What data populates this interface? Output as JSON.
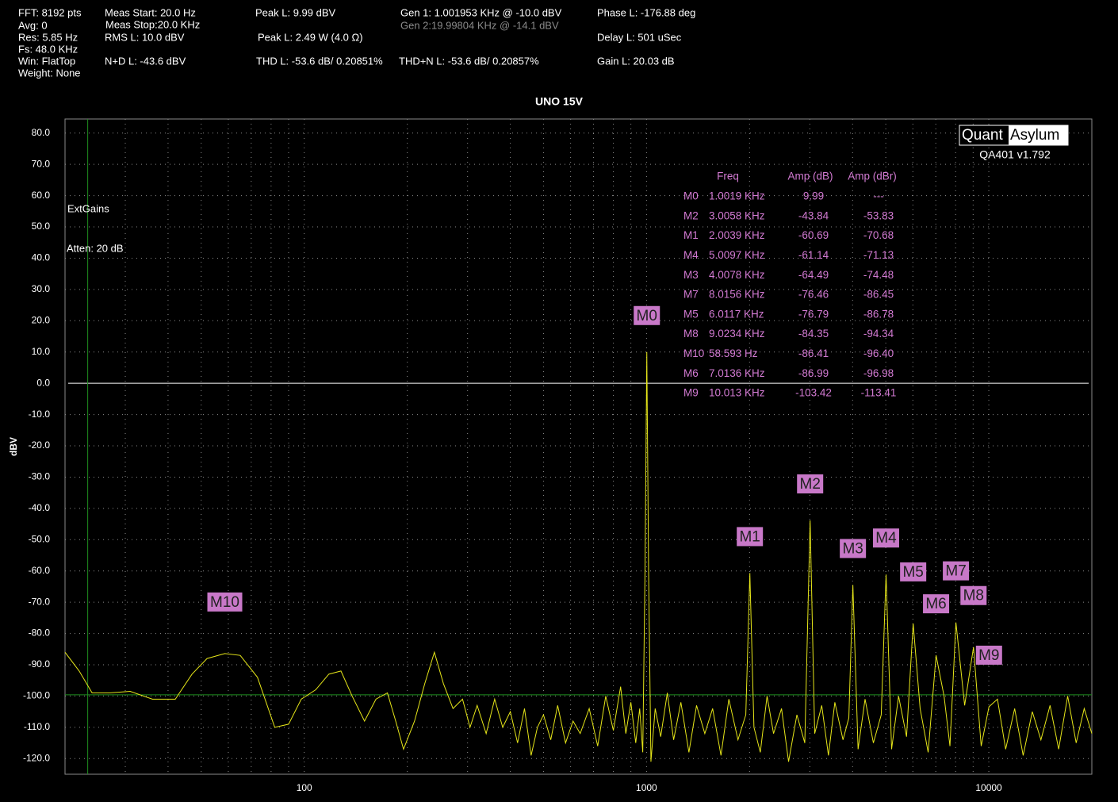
{
  "header": [
    "FFT: 8192 pts",
    "Avg: 0",
    "Res: 5.85 Hz",
    "Fs: 48.0 KHz",
    "Win: FlatTop",
    "Weight: None",
    "Meas Start: 20.0 Hz",
    "Meas Stop:20.0 KHz",
    "RMS L: 10.0 dBV",
    "N+D L: -43.6 dBV",
    "Peak L: 9.99 dBV",
    "Peak L: 2.49 W (4.0 Ω)",
    "THD L: -53.6 dB/ 0.20851%",
    "Gen 1: 1.001953 KHz @ -10.0  dBV",
    "Gen 2:19.99804 KHz @ -14.1  dBV",
    "THD+N L: -53.6 dB/ 0.20857%",
    "Phase L: -176.88 deg",
    "Delay L: 501 uSec",
    "Gain L: 20.03 dB"
  ],
  "logo": [
    "Quant",
    "Asylum"
  ],
  "version": "QA401 v1.792",
  "chart_data": {
    "type": "line",
    "title": "UNO 15V",
    "y_label": "dBV",
    "annotations": [
      "ExtGains",
      "Atten: 20 dB"
    ],
    "xscale": "log",
    "xlim": [
      20,
      20000
    ],
    "xticks": [
      100,
      1000,
      10000
    ],
    "xminor": [
      30,
      40,
      50,
      60,
      70,
      80,
      90,
      200,
      300,
      400,
      500,
      600,
      700,
      800,
      900,
      2000,
      3000,
      4000,
      5000,
      6000,
      7000,
      8000,
      9000
    ],
    "ylim": [
      -125,
      84.5
    ],
    "yticks": [
      {
        "value": 80,
        "label": "80.0"
      },
      {
        "value": 70,
        "label": "70.0"
      },
      {
        "value": 60,
        "label": "60.0"
      },
      {
        "value": 50,
        "label": "50.0"
      },
      {
        "value": 40,
        "label": "40.0"
      },
      {
        "value": 30,
        "label": "30.0"
      },
      {
        "value": 20,
        "label": "20.0"
      },
      {
        "value": 10,
        "label": "10.0"
      },
      {
        "value": 0,
        "label": "0.0"
      },
      {
        "value": -10,
        "label": "-10.0"
      },
      {
        "value": -20,
        "label": "-20.0"
      },
      {
        "value": -30,
        "label": "-30.0"
      },
      {
        "value": -40,
        "label": "-40.0"
      },
      {
        "value": -50,
        "label": "-50.0"
      },
      {
        "value": -60,
        "label": "-60.0"
      },
      {
        "value": -70,
        "label": "-70.0"
      },
      {
        "value": -80,
        "label": "-80.0"
      },
      {
        "value": -90,
        "label": "-90.0"
      },
      {
        "value": -100,
        "label": "-100.0"
      },
      {
        "value": -110,
        "label": "-110.0"
      },
      {
        "value": -120,
        "label": "-120.0"
      }
    ],
    "grid": true,
    "zero_line": true,
    "ref_lines": {
      "x": 23.3,
      "y": -99.6,
      "color": "#1f8f1f"
    },
    "x": [
      20,
      22,
      24,
      27,
      31,
      36,
      42,
      47,
      52,
      58.6,
      65,
      73,
      82,
      90,
      98,
      108,
      118,
      128,
      138,
      150,
      162,
      175,
      185,
      195,
      210,
      225,
      240,
      255,
      272,
      290,
      305,
      320,
      340,
      360,
      380,
      400,
      420,
      440,
      460,
      480,
      500,
      525,
      550,
      580,
      610,
      640,
      680,
      720,
      760,
      800,
      840,
      870,
      900,
      930,
      955,
      975,
      990,
      1001.9,
      1014,
      1030,
      1060,
      1100,
      1150,
      1200,
      1260,
      1330,
      1400,
      1480,
      1560,
      1650,
      1740,
      1850,
      1950,
      2003.9,
      2060,
      2150,
      2250,
      2350,
      2480,
      2600,
      2750,
      2900,
      3005.8,
      3100,
      3250,
      3400,
      3550,
      3750,
      3900,
      4007.8,
      4150,
      4350,
      4600,
      4850,
      5009.7,
      5200,
      5450,
      5750,
      6011.7,
      6300,
      6650,
      7013.6,
      7400,
      7700,
      8015.6,
      8500,
      9023.4,
      9500,
      10013,
      10600,
      11200,
      11900,
      12600,
      13400,
      14200,
      15100,
      16000,
      17000,
      18000,
      19000,
      20000
    ],
    "series": [
      {
        "name": "L",
        "color": "#e6e619",
        "values": [
          -86,
          -92,
          -99,
          -99,
          -98.5,
          -101,
          -101,
          -93,
          -88,
          -86.41,
          -87,
          -94,
          -110,
          -109,
          -101,
          -98,
          -93,
          -92,
          -100,
          -108,
          -101,
          -99,
          -108,
          -117,
          -108,
          -96,
          -86,
          -96,
          -104,
          -101,
          -110,
          -103,
          -112,
          -101,
          -110,
          -105,
          -115,
          -104,
          -119,
          -110,
          -106,
          -114,
          -103,
          -115,
          -108,
          -112,
          -104,
          -116,
          -100,
          -111,
          -97,
          -112,
          -102,
          -115,
          -104,
          -118,
          -60,
          9.99,
          -60,
          -121,
          -104,
          -113,
          -99,
          -114,
          -102,
          -118,
          -103,
          -112,
          -104,
          -119,
          -101,
          -114,
          -106,
          -60.69,
          -110,
          -118,
          -100,
          -112,
          -104,
          -121,
          -106,
          -115,
          -43.84,
          -112,
          -103,
          -119,
          -102,
          -114,
          -107,
          -64.49,
          -117,
          -101,
          -115,
          -106,
          -61.14,
          -117,
          -100,
          -113,
          -76.79,
          -104,
          -118,
          -86.99,
          -100,
          -116,
          -76.46,
          -103,
          -84.35,
          -116,
          -103.42,
          -101,
          -117,
          -104,
          -119,
          -105,
          -114,
          -103,
          -117,
          -100,
          -115,
          -104,
          -112
        ]
      }
    ],
    "markers": [
      {
        "label": "M0",
        "x": 1001.9,
        "y": 9.99
      },
      {
        "label": "M1",
        "x": 2003.9,
        "y": -60.69
      },
      {
        "label": "M2",
        "x": 3005.8,
        "y": -43.84
      },
      {
        "label": "M3",
        "x": 4007.8,
        "y": -64.49
      },
      {
        "label": "M4",
        "x": 5009.7,
        "y": -61.14
      },
      {
        "label": "M5",
        "x": 6011.7,
        "y": -76.79
      },
      {
        "label": "M6",
        "x": 7013.6,
        "y": -86.99
      },
      {
        "label": "M7",
        "x": 8015.6,
        "y": -76.46
      },
      {
        "label": "M8",
        "x": 9023.4,
        "y": -84.35
      },
      {
        "label": "M9",
        "x": 10013,
        "y": -103.42
      },
      {
        "label": "M10",
        "x": 58.593,
        "y": -86.41
      }
    ],
    "marker_table": {
      "headers": [
        "Freq",
        "Amp (dB)",
        "Amp (dBr)"
      ],
      "rows": [
        [
          "M0",
          "1.0019 KHz",
          "9.99",
          "---"
        ],
        [
          "M2",
          "3.0058 KHz",
          "-43.84",
          "-53.83"
        ],
        [
          "M1",
          "2.0039 KHz",
          "-60.69",
          "-70.68"
        ],
        [
          "M4",
          "5.0097 KHz",
          "-61.14",
          "-71.13"
        ],
        [
          "M3",
          "4.0078 KHz",
          "-64.49",
          "-74.48"
        ],
        [
          "M7",
          "8.0156 KHz",
          "-76.46",
          "-86.45"
        ],
        [
          "M5",
          "6.0117 KHz",
          "-76.79",
          "-86.78"
        ],
        [
          "M8",
          "9.0234 KHz",
          "-84.35",
          "-94.34"
        ],
        [
          "M10",
          "58.593 Hz",
          "-86.41",
          "-96.40"
        ],
        [
          "M6",
          "7.0136 KHz",
          "-86.99",
          "-96.98"
        ],
        [
          "M9",
          "10.013 KHz",
          "-103.42",
          "-113.41"
        ]
      ]
    }
  }
}
